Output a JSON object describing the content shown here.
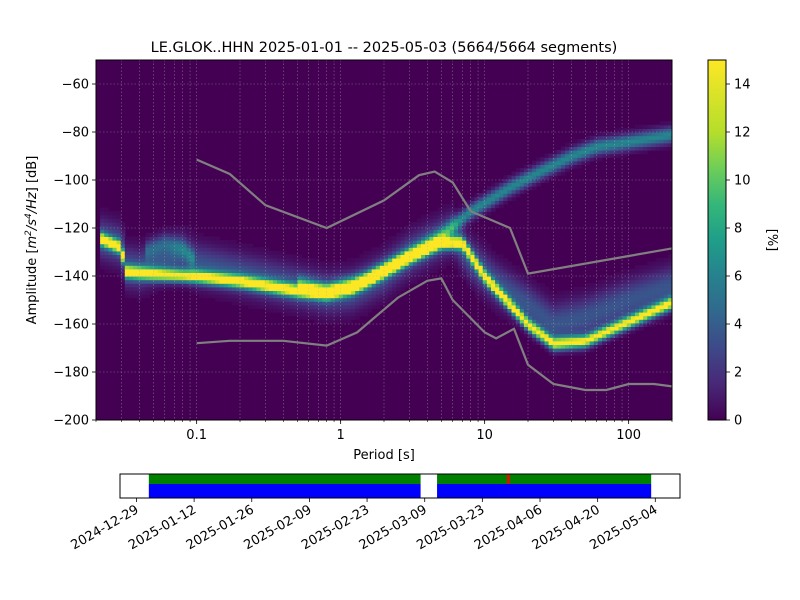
{
  "chart_data": [
    {
      "type": "heatmap",
      "title": "LE.GLOK..HHN   2025-01-01 -- 2025-05-03  (5664/5664 segments)",
      "xlabel": "Period [s]",
      "ylabel_parts": {
        "a": "Amplitude [",
        "b": "m",
        "c": "2",
        "d": "/s",
        "e": "4",
        "f": "/Hz",
        "g": "] [dB]"
      },
      "xscale": "log",
      "xlim": [
        0.02,
        200
      ],
      "ylim": [
        -200,
        -50
      ],
      "x_ticks": [
        {
          "value": 0.1,
          "label": "0.1"
        },
        {
          "value": 1,
          "label": "1"
        },
        {
          "value": 10,
          "label": "10"
        },
        {
          "value": 100,
          "label": "100"
        }
      ],
      "y_ticks": [
        {
          "value": -60,
          "label": "−60"
        },
        {
          "value": -80,
          "label": "−80"
        },
        {
          "value": -100,
          "label": "−100"
        },
        {
          "value": -120,
          "label": "−120"
        },
        {
          "value": -140,
          "label": "−140"
        },
        {
          "value": -160,
          "label": "−160"
        },
        {
          "value": -180,
          "label": "−180"
        },
        {
          "value": -200,
          "label": "−200"
        }
      ],
      "grid": true,
      "colormap": "viridis",
      "colorbar": {
        "label": "[%]",
        "range": [
          0,
          15
        ],
        "ticks": [
          {
            "value": 0,
            "label": "0"
          },
          {
            "value": 2,
            "label": "2"
          },
          {
            "value": 4,
            "label": "4"
          },
          {
            "value": 6,
            "label": "6"
          },
          {
            "value": 8,
            "label": "8"
          },
          {
            "value": 10,
            "label": "10"
          },
          {
            "value": 12,
            "label": "12"
          },
          {
            "value": 14,
            "label": "14"
          }
        ]
      },
      "density_bands": [
        {
          "points": [
            [
              0.021,
              -124
            ],
            [
              0.03,
              -127
            ],
            [
              0.032,
              -136
            ],
            [
              0.04,
              -137
            ],
            [
              0.06,
              -133
            ],
            [
              0.08,
              -131
            ],
            [
              0.1,
              -135
            ],
            [
              0.2,
              -139
            ],
            [
              0.4,
              -143
            ],
            [
              0.8,
              -147
            ],
            [
              1.2,
              -146
            ],
            [
              2,
              -139
            ],
            [
              3,
              -131
            ],
            [
              5,
              -124
            ],
            [
              6,
              -122
            ],
            [
              7,
              -128
            ],
            [
              8,
              -133
            ],
            [
              12,
              -143
            ],
            [
              20,
              -152
            ],
            [
              30,
              -160
            ],
            [
              50,
              -157
            ],
            [
              100,
              -150
            ],
            [
              200,
              -144
            ]
          ],
          "sigma": 5.5,
          "amp": 4
        },
        {
          "points": [
            [
              0.021,
              -124
            ],
            [
              0.03,
              -128
            ],
            [
              0.032,
              -138
            ],
            [
              0.05,
              -139
            ],
            [
              0.1,
              -140
            ],
            [
              0.2,
              -142
            ],
            [
              0.5,
              -146
            ],
            [
              0.8,
              -147
            ],
            [
              1.2,
              -145
            ],
            [
              2,
              -138
            ],
            [
              3,
              -132
            ],
            [
              5,
              -126
            ],
            [
              7,
              -126
            ],
            [
              10,
              -140
            ],
            [
              20,
              -160
            ],
            [
              30,
              -168
            ],
            [
              50,
              -167
            ],
            [
              100,
              -159
            ],
            [
              200,
              -151
            ]
          ],
          "sigma": 1.8,
          "amp": 15
        },
        {
          "points": [
            [
              0.5,
              -143
            ],
            [
              0.8,
              -146
            ],
            [
              1.5,
              -141
            ],
            [
              3,
              -131
            ],
            [
              5,
              -123
            ],
            [
              8,
              -113
            ],
            [
              15,
              -103
            ],
            [
              25,
              -96
            ],
            [
              40,
              -90
            ],
            [
              60,
              -86
            ],
            [
              100,
              -84
            ],
            [
              200,
              -81
            ]
          ],
          "sigma": 2.2,
          "amp": 7
        },
        {
          "points": [
            [
              0.045,
              -129
            ],
            [
              0.06,
              -126
            ],
            [
              0.08,
              -128
            ],
            [
              0.1,
              -134
            ]
          ],
          "sigma": 2.5,
          "amp": 3.5
        }
      ],
      "series": [
        {
          "name": "",
          "color": "#808080",
          "points": [
            [
              0.1,
              -91.5
            ],
            [
              0.17,
              -97.5
            ],
            [
              0.3,
              -110.5
            ],
            [
              0.8,
              -120
            ],
            [
              2,
              -108.5
            ],
            [
              3.5,
              -98
            ],
            [
              4.5,
              -96.5
            ],
            [
              6,
              -101
            ],
            [
              8,
              -113
            ],
            [
              15,
              -120
            ],
            [
              20,
              -139
            ],
            [
              200,
              -128.5
            ]
          ]
        },
        {
          "name": "",
          "color": "#808080",
          "points": [
            [
              0.1,
              -168
            ],
            [
              0.17,
              -167
            ],
            [
              0.4,
              -167
            ],
            [
              0.8,
              -169
            ],
            [
              1.3,
              -163.5
            ],
            [
              2.5,
              -149
            ],
            [
              4,
              -142
            ],
            [
              5,
              -141
            ],
            [
              6,
              -150
            ],
            [
              10,
              -163.5
            ],
            [
              12,
              -166
            ],
            [
              16,
              -162
            ],
            [
              20,
              -177
            ],
            [
              30,
              -185
            ],
            [
              50,
              -187.5
            ],
            [
              70,
              -187.5
            ],
            [
              100,
              -185
            ],
            [
              150,
              -185
            ],
            [
              200,
              -186
            ]
          ]
        }
      ]
    },
    {
      "type": "timeline",
      "date_ticks": [
        "2024-12-29",
        "2025-01-12",
        "2025-01-26",
        "2025-02-09",
        "2025-02-23",
        "2025-03-09",
        "2025-03-23",
        "2025-04-06",
        "2025-04-20",
        "2025-05-04"
      ],
      "axis_range": [
        "2024-12-25",
        "2025-05-10"
      ],
      "coverage_segments": [
        {
          "start": "2025-01-01",
          "end": "2025-03-08"
        },
        {
          "start": "2025-03-12",
          "end": "2025-05-03"
        }
      ],
      "processed_color": "#008000",
      "data_color": "#0000ff",
      "marker": {
        "date": "2025-03-29",
        "color": "#ff0000"
      }
    }
  ]
}
